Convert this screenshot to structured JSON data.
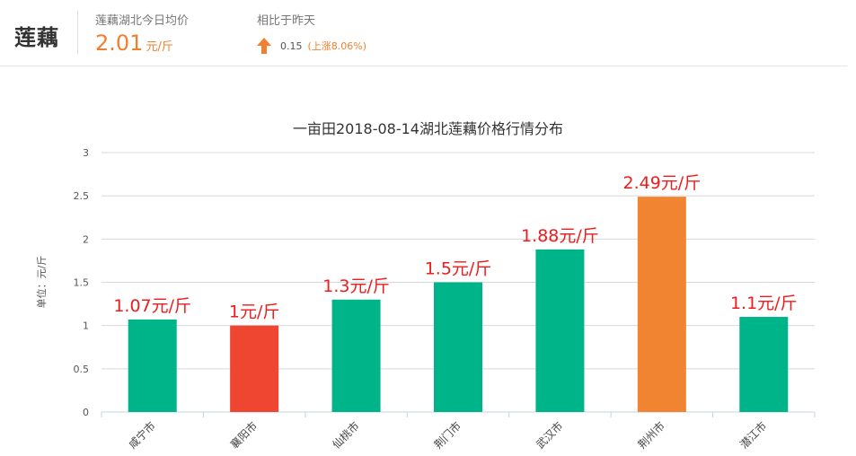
{
  "header": {
    "product": "莲藕",
    "avg_label": "莲藕湖北今日均价",
    "avg_value": "2.01",
    "avg_unit": "元/斤",
    "compare_label": "相比于昨天",
    "change_value": "0.15",
    "change_pct": "(上涨8.06%)",
    "change_direction": "up",
    "icon": "arrow-up-icon",
    "colors": {
      "accent": "#f08030",
      "up_arrow": "#f08030"
    }
  },
  "chart_data": {
    "type": "bar",
    "title": "一亩田2018-08-14湖北莲藕价格行情分布",
    "ylabel": "单位：元/斤",
    "xlabel": "",
    "ylim": [
      0,
      3
    ],
    "yticks": [
      "0",
      "0.5",
      "1",
      "1.5",
      "2",
      "2.5",
      "3"
    ],
    "grid": true,
    "categories": [
      "咸宁市",
      "襄阳市",
      "仙桃市",
      "荆门市",
      "武汉市",
      "荆州市",
      "潜江市"
    ],
    "values": [
      1.07,
      1,
      1.3,
      1.5,
      1.88,
      2.49,
      1.1
    ],
    "data_labels": [
      "1.07元/斤",
      "1元/斤",
      "1.3元/斤",
      "1.5元/斤",
      "1.88元/斤",
      "2.49元/斤",
      "1.1元/斤"
    ],
    "bar_colors": [
      "#00b48a",
      "#ef4631",
      "#00b48a",
      "#00b48a",
      "#00b48a",
      "#f08430",
      "#00b48a"
    ],
    "label_color": "#ee1c1c"
  }
}
